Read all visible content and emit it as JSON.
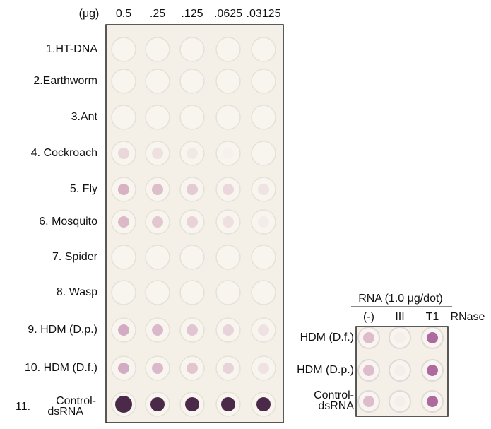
{
  "figure": {
    "main": {
      "unit": "(μg)",
      "columns": [
        "0.5",
        ".25",
        ".125",
        ".0625",
        ".03125"
      ],
      "rows": [
        "1.HT-DNA",
        "2.Earthworm",
        "3.Ant",
        "4. Cockroach",
        "5. Fly",
        "6. Mosquito",
        "7. Spider",
        "8. Wasp",
        "9. HDM (D.p.)",
        "10. HDM (D.f.)"
      ],
      "last_row": {
        "number": "11.",
        "lines": [
          "Control-",
          "dsRNA"
        ]
      }
    },
    "inset": {
      "title": "RNA (1.0 μg/dot)",
      "columns": [
        "(-)",
        "III",
        "T1"
      ],
      "column_suffix": "RNase",
      "rows": [
        "HDM (D.f.)",
        "HDM (D.p.)"
      ],
      "last_row": {
        "lines": [
          "Control-",
          "dsRNA"
        ]
      }
    }
  }
}
